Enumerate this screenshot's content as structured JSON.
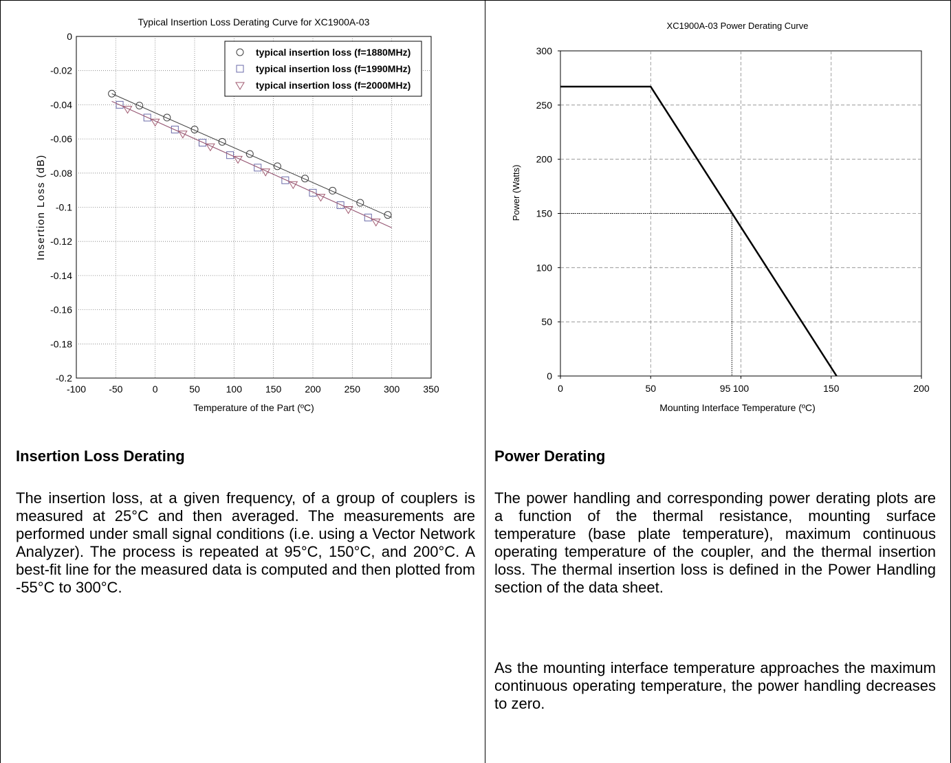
{
  "left_panel": {
    "heading": "Insertion Loss Derating",
    "paragraph": "The insertion loss, at a given frequency, of a group of couplers is measured at 25°C and then averaged.  The measurements are performed under small signal conditions (i.e. using a Vector Network Analyzer).  The process is repeated at 95°C, 150°C, and 200°C.  A best-fit line for the measured data is computed and then plotted from -55°C to 300°C."
  },
  "right_panel": {
    "heading": "Power Derating",
    "paragraph_1": "The power handling and corresponding power derating plots are a function of the thermal resistance, mounting surface temperature (base plate temperature), maximum continuous operating temperature of the coupler, and the thermal insertion loss.  The thermal insertion loss is defined in the Power Handling section of the data sheet.",
    "paragraph_2": "As the mounting interface temperature approaches the maximum continuous operating temperature, the power handling decreases to zero."
  },
  "chart_data": [
    {
      "type": "scatter",
      "title": "Typical Insertion Loss Derating Curve for XC1900A-03",
      "xlabel": "Temperature of the Part (ºC)",
      "ylabel": "Insertion Loss (dB)",
      "xlim": [
        -100,
        350
      ],
      "ylim": [
        -0.2,
        0
      ],
      "xticks": [
        -100,
        -50,
        0,
        50,
        100,
        150,
        200,
        250,
        300,
        350
      ],
      "yticks": [
        0,
        -0.02,
        -0.04,
        -0.06,
        -0.08,
        -0.1,
        -0.12,
        -0.14,
        -0.16,
        -0.18,
        -0.2
      ],
      "grid": true,
      "legend_position": "top-right",
      "series": [
        {
          "name": "typical insertion loss (f=1880MHz)",
          "marker": "circle",
          "color": "#404040",
          "fit_line": {
            "x": [
              -55,
              300
            ],
            "y": [
              -0.0335,
              -0.106
            ]
          },
          "x": [
            -55,
            -20,
            15,
            50,
            85,
            120,
            155,
            190,
            225,
            260,
            295
          ],
          "y": [
            -0.0335,
            -0.0405,
            -0.0475,
            -0.0545,
            -0.0617,
            -0.0688,
            -0.076,
            -0.0832,
            -0.0903,
            -0.0974,
            -0.1045
          ]
        },
        {
          "name": "typical insertion loss (f=1990MHz)",
          "marker": "square",
          "color": "#6a6aa8",
          "fit_line": {
            "x": [
              -55,
              300
            ],
            "y": [
              -0.038,
              -0.112
            ]
          },
          "x": [
            -45,
            -10,
            25,
            60,
            95,
            130,
            165,
            200,
            235,
            270
          ],
          "y": [
            -0.04,
            -0.0475,
            -0.0545,
            -0.0622,
            -0.0695,
            -0.0768,
            -0.0842,
            -0.0915,
            -0.0988,
            -0.106
          ]
        },
        {
          "name": "typical insertion loss (f=2000MHz)",
          "marker": "triangle",
          "color": "#a05a70",
          "fit_line": {
            "x": [
              -55,
              300
            ],
            "y": [
              -0.038,
              -0.112
            ]
          },
          "x": [
            -35,
            0,
            35,
            70,
            105,
            140,
            175,
            210,
            245,
            280
          ],
          "y": [
            -0.0425,
            -0.05,
            -0.057,
            -0.0645,
            -0.0718,
            -0.0792,
            -0.0866,
            -0.094,
            -0.1012,
            -0.1085
          ]
        }
      ]
    },
    {
      "type": "line",
      "title": "XC1900A-03 Power Derating Curve",
      "xlabel": "Mounting Interface Temperature (ºC)",
      "ylabel": "Power (Watts)",
      "xlim": [
        0,
        200
      ],
      "ylim": [
        0,
        300
      ],
      "xticks": [
        0,
        50,
        100,
        150,
        200
      ],
      "yticks": [
        0,
        50,
        100,
        150,
        200,
        250,
        300
      ],
      "grid": true,
      "series": [
        {
          "x": [
            0,
            50,
            153
          ],
          "y": [
            267,
            267,
            0
          ],
          "color": "#000000"
        }
      ],
      "annotations": [
        {
          "type": "dotted-reference",
          "x": 95,
          "y": 150,
          "label": "95"
        }
      ]
    }
  ]
}
